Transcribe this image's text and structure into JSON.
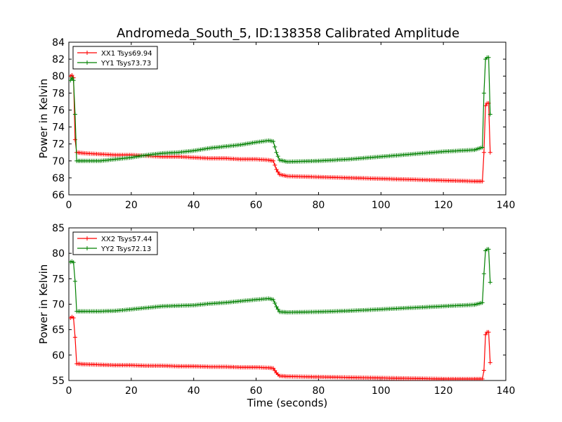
{
  "figure": {
    "title": "Andromeda_South_5, ID:138358 Calibrated Amplitude",
    "xlabel": "Time (seconds)",
    "ylabel": "Power in Kelvin"
  },
  "colors": {
    "red": "#ff0000",
    "green": "#008000"
  },
  "chart_data": [
    {
      "type": "line",
      "title": "Andromeda_South_5, ID:138358 Calibrated Amplitude",
      "xlabel": "",
      "ylabel": "Power in Kelvin",
      "xlim": [
        0,
        140
      ],
      "ylim": [
        66,
        84
      ],
      "xticks": [
        0,
        20,
        40,
        60,
        80,
        100,
        120,
        140
      ],
      "yticks": [
        66,
        68,
        70,
        72,
        74,
        76,
        78,
        80,
        82,
        84
      ],
      "grid": false,
      "legend": "top-left",
      "series": [
        {
          "name": "XX1 Tsys69.94",
          "color": "#ff0000",
          "points": [
            [
              0.5,
              80.0
            ],
            [
              1.0,
              80.1
            ],
            [
              1.5,
              79.8
            ],
            [
              2.0,
              72.5
            ],
            [
              2.5,
              71.0
            ],
            [
              5,
              70.9
            ],
            [
              10,
              70.8
            ],
            [
              15,
              70.7
            ],
            [
              20,
              70.7
            ],
            [
              25,
              70.6
            ],
            [
              30,
              70.5
            ],
            [
              35,
              70.5
            ],
            [
              40,
              70.4
            ],
            [
              45,
              70.3
            ],
            [
              50,
              70.3
            ],
            [
              55,
              70.2
            ],
            [
              60,
              70.2
            ],
            [
              64,
              70.1
            ],
            [
              65.5,
              70.0
            ],
            [
              66.5,
              69.0
            ],
            [
              67.5,
              68.4
            ],
            [
              70,
              68.2
            ],
            [
              80,
              68.1
            ],
            [
              90,
              68.0
            ],
            [
              100,
              67.9
            ],
            [
              110,
              67.8
            ],
            [
              120,
              67.7
            ],
            [
              130,
              67.6
            ],
            [
              132.5,
              67.6
            ],
            [
              133.0,
              71.0
            ],
            [
              133.5,
              76.5
            ],
            [
              134.0,
              76.8
            ],
            [
              134.5,
              76.8
            ],
            [
              135.0,
              71.0
            ]
          ]
        },
        {
          "name": "YY1 Tsys73.73",
          "color": "#008000",
          "points": [
            [
              0.5,
              79.5
            ],
            [
              1.0,
              79.8
            ],
            [
              1.5,
              79.5
            ],
            [
              2.0,
              75.5
            ],
            [
              2.5,
              70.0
            ],
            [
              5,
              70.0
            ],
            [
              10,
              70.0
            ],
            [
              15,
              70.2
            ],
            [
              20,
              70.4
            ],
            [
              25,
              70.7
            ],
            [
              30,
              70.9
            ],
            [
              35,
              71.0
            ],
            [
              40,
              71.2
            ],
            [
              45,
              71.5
            ],
            [
              50,
              71.7
            ],
            [
              55,
              71.9
            ],
            [
              60,
              72.2
            ],
            [
              64,
              72.4
            ],
            [
              65.5,
              72.3
            ],
            [
              66.5,
              71.0
            ],
            [
              67.5,
              70.1
            ],
            [
              70,
              69.9
            ],
            [
              80,
              70.0
            ],
            [
              90,
              70.2
            ],
            [
              100,
              70.5
            ],
            [
              110,
              70.8
            ],
            [
              120,
              71.1
            ],
            [
              130,
              71.3
            ],
            [
              132.5,
              71.6
            ],
            [
              133.0,
              78.0
            ],
            [
              133.5,
              82.0
            ],
            [
              134.0,
              82.2
            ],
            [
              134.5,
              82.2
            ],
            [
              135.0,
              75.5
            ]
          ]
        }
      ]
    },
    {
      "type": "line",
      "title": "",
      "xlabel": "Time (seconds)",
      "ylabel": "Power in Kelvin",
      "xlim": [
        0,
        140
      ],
      "ylim": [
        55,
        85
      ],
      "xticks": [
        0,
        20,
        40,
        60,
        80,
        100,
        120,
        140
      ],
      "yticks": [
        55,
        60,
        65,
        70,
        75,
        80,
        85
      ],
      "grid": false,
      "legend": "top-left",
      "series": [
        {
          "name": "XX2 Tsys57.44",
          "color": "#ff0000",
          "points": [
            [
              0.5,
              67.3
            ],
            [
              1.0,
              67.5
            ],
            [
              1.5,
              67.3
            ],
            [
              2.0,
              63.5
            ],
            [
              2.5,
              58.3
            ],
            [
              5,
              58.2
            ],
            [
              10,
              58.1
            ],
            [
              15,
              58.0
            ],
            [
              20,
              58.0
            ],
            [
              25,
              57.9
            ],
            [
              30,
              57.9
            ],
            [
              35,
              57.8
            ],
            [
              40,
              57.8
            ],
            [
              45,
              57.7
            ],
            [
              50,
              57.7
            ],
            [
              55,
              57.6
            ],
            [
              60,
              57.6
            ],
            [
              64,
              57.5
            ],
            [
              65.5,
              57.4
            ],
            [
              66.5,
              56.5
            ],
            [
              67.5,
              55.9
            ],
            [
              70,
              55.8
            ],
            [
              80,
              55.7
            ],
            [
              90,
              55.6
            ],
            [
              100,
              55.5
            ],
            [
              110,
              55.4
            ],
            [
              120,
              55.3
            ],
            [
              130,
              55.3
            ],
            [
              132.5,
              55.3
            ],
            [
              133.0,
              57.0
            ],
            [
              133.5,
              64.0
            ],
            [
              134.0,
              64.5
            ],
            [
              134.5,
              64.5
            ],
            [
              135.0,
              58.5
            ]
          ]
        },
        {
          "name": "YY2 Tsys72.13",
          "color": "#008000",
          "points": [
            [
              0.5,
              78.3
            ],
            [
              1.0,
              78.4
            ],
            [
              1.5,
              78.2
            ],
            [
              2.0,
              74.5
            ],
            [
              2.5,
              68.6
            ],
            [
              5,
              68.6
            ],
            [
              10,
              68.6
            ],
            [
              15,
              68.7
            ],
            [
              20,
              69.0
            ],
            [
              25,
              69.3
            ],
            [
              30,
              69.6
            ],
            [
              35,
              69.7
            ],
            [
              40,
              69.8
            ],
            [
              45,
              70.1
            ],
            [
              50,
              70.3
            ],
            [
              55,
              70.6
            ],
            [
              60,
              70.9
            ],
            [
              64,
              71.1
            ],
            [
              65.5,
              70.9
            ],
            [
              66.5,
              69.5
            ],
            [
              67.5,
              68.5
            ],
            [
              70,
              68.4
            ],
            [
              80,
              68.5
            ],
            [
              90,
              68.7
            ],
            [
              100,
              69.0
            ],
            [
              110,
              69.3
            ],
            [
              120,
              69.6
            ],
            [
              130,
              69.9
            ],
            [
              132.5,
              70.3
            ],
            [
              133.0,
              76.0
            ],
            [
              133.5,
              80.5
            ],
            [
              134.0,
              80.8
            ],
            [
              134.5,
              80.8
            ],
            [
              135.0,
              74.3
            ]
          ]
        }
      ]
    }
  ]
}
